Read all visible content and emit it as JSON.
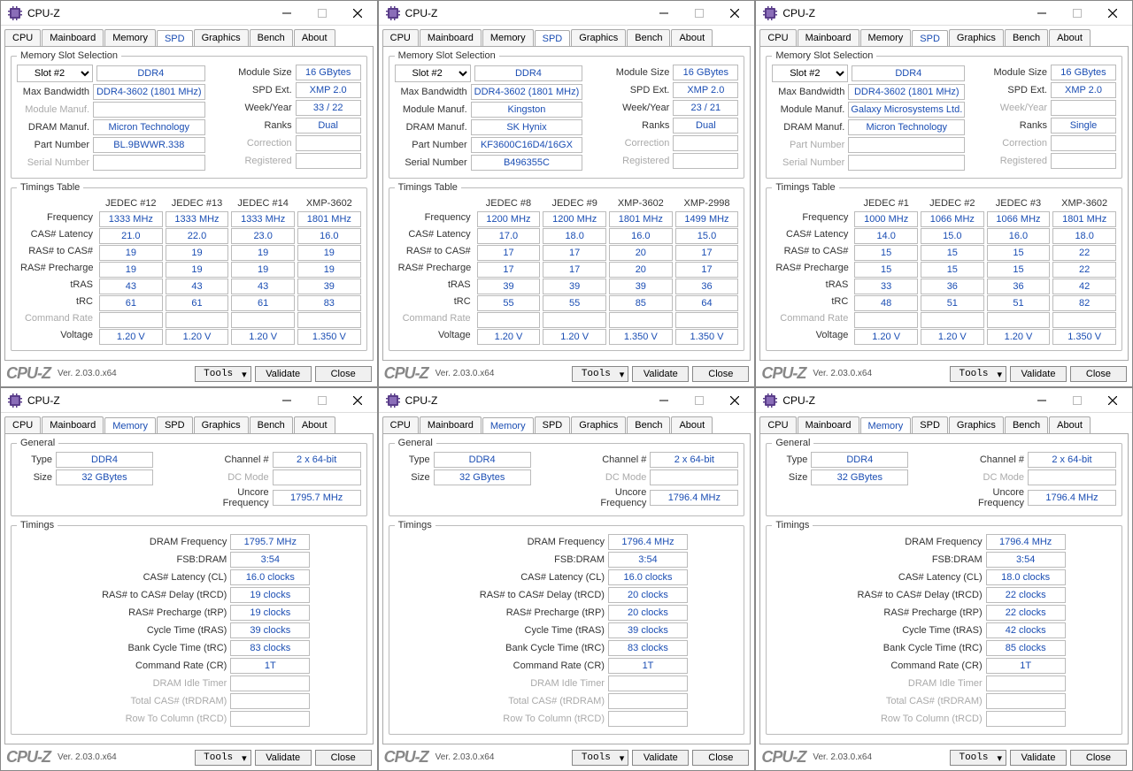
{
  "app": {
    "title": "CPU-Z",
    "logo": "CPU-Z",
    "version": "Ver. 2.03.0.x64"
  },
  "buttons": {
    "tools": "Tools",
    "validate": "Validate",
    "close": "Close"
  },
  "tabs": [
    "CPU",
    "Mainboard",
    "Memory",
    "SPD",
    "Graphics",
    "Bench",
    "About"
  ],
  "labels": {
    "memslot": "Memory Slot Selection",
    "maxbw": "Max Bandwidth",
    "modman": "Module Manuf.",
    "dramman": "DRAM Manuf.",
    "partnum": "Part Number",
    "serial": "Serial Number",
    "modsize": "Module Size",
    "spdext": "SPD Ext.",
    "weekyear": "Week/Year",
    "ranks": "Ranks",
    "correction": "Correction",
    "registered": "Registered",
    "timetbl": "Timings Table",
    "general": "General",
    "type": "Type",
    "size": "Size",
    "channel": "Channel #",
    "dcmode": "DC Mode",
    "uncore": "Uncore Frequency",
    "timings": "Timings"
  },
  "spdRows": [
    "Frequency",
    "CAS# Latency",
    "RAS# to CAS#",
    "RAS# Precharge",
    "tRAS",
    "tRC",
    "Command Rate",
    "Voltage"
  ],
  "memRows": [
    "DRAM Frequency",
    "FSB:DRAM",
    "CAS# Latency (CL)",
    "RAS# to CAS# Delay (tRCD)",
    "RAS# Precharge (tRP)",
    "Cycle Time (tRAS)",
    "Bank Cycle Time (tRC)",
    "Command Rate (CR)",
    "DRAM Idle Timer",
    "Total CAS# (tRDRAM)",
    "Row To Column (tRCD)"
  ],
  "colors": {
    "link": "#1a4db3",
    "disabled": "#aaa"
  },
  "spdWindows": [
    {
      "slot": "Slot #2",
      "ddr": "DDR4",
      "maxbw": "DDR4-3602 (1801 MHz)",
      "modman": "",
      "dramman": "Micron Technology",
      "partnum": "BL.9BWWR.338",
      "serial": "",
      "modmanDis": true,
      "serialDis": true,
      "partnumDis": false,
      "drammanDis": false,
      "modsize": "16 GBytes",
      "spdext": "XMP 2.0",
      "weekyear": "33 / 22",
      "ranks": "Dual",
      "correction": "",
      "registered": "",
      "weekyearDis": false,
      "cols": [
        "JEDEC #12",
        "JEDEC #13",
        "JEDEC #14",
        "XMP-3602"
      ],
      "data": [
        [
          "1333 MHz",
          "1333 MHz",
          "1333 MHz",
          "1801 MHz"
        ],
        [
          "21.0",
          "22.0",
          "23.0",
          "16.0"
        ],
        [
          "19",
          "19",
          "19",
          "19"
        ],
        [
          "19",
          "19",
          "19",
          "19"
        ],
        [
          "43",
          "43",
          "43",
          "39"
        ],
        [
          "61",
          "61",
          "61",
          "83"
        ],
        [
          "",
          "",
          "",
          ""
        ],
        [
          "1.20 V",
          "1.20 V",
          "1.20 V",
          "1.350 V"
        ]
      ]
    },
    {
      "slot": "Slot #2",
      "ddr": "DDR4",
      "maxbw": "DDR4-3602 (1801 MHz)",
      "modman": "Kingston",
      "dramman": "SK Hynix",
      "partnum": "KF3600C16D4/16GX",
      "serial": "B496355C",
      "modmanDis": false,
      "serialDis": false,
      "partnumDis": false,
      "drammanDis": false,
      "modsize": "16 GBytes",
      "spdext": "XMP 2.0",
      "weekyear": "23 / 21",
      "ranks": "Dual",
      "correction": "",
      "registered": "",
      "weekyearDis": false,
      "cols": [
        "JEDEC #8",
        "JEDEC #9",
        "XMP-3602",
        "XMP-2998"
      ],
      "data": [
        [
          "1200 MHz",
          "1200 MHz",
          "1801 MHz",
          "1499 MHz"
        ],
        [
          "17.0",
          "18.0",
          "16.0",
          "15.0"
        ],
        [
          "17",
          "17",
          "20",
          "17"
        ],
        [
          "17",
          "17",
          "20",
          "17"
        ],
        [
          "39",
          "39",
          "39",
          "36"
        ],
        [
          "55",
          "55",
          "85",
          "64"
        ],
        [
          "",
          "",
          "",
          ""
        ],
        [
          "1.20 V",
          "1.20 V",
          "1.350 V",
          "1.350 V"
        ]
      ]
    },
    {
      "slot": "Slot #2",
      "ddr": "DDR4",
      "maxbw": "DDR4-3602 (1801 MHz)",
      "modman": "Galaxy Microsystems Ltd.",
      "dramman": "Micron Technology",
      "partnum": "",
      "serial": "",
      "modmanDis": false,
      "serialDis": true,
      "partnumDis": true,
      "drammanDis": false,
      "modsize": "16 GBytes",
      "spdext": "XMP 2.0",
      "weekyear": "",
      "ranks": "Single",
      "correction": "",
      "registered": "",
      "weekyearDis": true,
      "cols": [
        "JEDEC #1",
        "JEDEC #2",
        "JEDEC #3",
        "XMP-3602"
      ],
      "data": [
        [
          "1000 MHz",
          "1066 MHz",
          "1066 MHz",
          "1801 MHz"
        ],
        [
          "14.0",
          "15.0",
          "16.0",
          "18.0"
        ],
        [
          "15",
          "15",
          "15",
          "22"
        ],
        [
          "15",
          "15",
          "15",
          "22"
        ],
        [
          "33",
          "36",
          "36",
          "42"
        ],
        [
          "48",
          "51",
          "51",
          "82"
        ],
        [
          "",
          "",
          "",
          ""
        ],
        [
          "1.20 V",
          "1.20 V",
          "1.20 V",
          "1.350 V"
        ]
      ]
    }
  ],
  "memWindows": [
    {
      "type": "DDR4",
      "size": "32 GBytes",
      "channel": "2 x 64-bit",
      "dcmode": "",
      "uncore": "1795.7 MHz",
      "vals": [
        "1795.7 MHz",
        "3:54",
        "16.0 clocks",
        "19 clocks",
        "19 clocks",
        "39 clocks",
        "83 clocks",
        "1T",
        "",
        "",
        ""
      ]
    },
    {
      "type": "DDR4",
      "size": "32 GBytes",
      "channel": "2 x 64-bit",
      "dcmode": "",
      "uncore": "1796.4 MHz",
      "vals": [
        "1796.4 MHz",
        "3:54",
        "16.0 clocks",
        "20 clocks",
        "20 clocks",
        "39 clocks",
        "83 clocks",
        "1T",
        "",
        "",
        ""
      ]
    },
    {
      "type": "DDR4",
      "size": "32 GBytes",
      "channel": "2 x 64-bit",
      "dcmode": "",
      "uncore": "1796.4 MHz",
      "vals": [
        "1796.4 MHz",
        "3:54",
        "18.0 clocks",
        "22 clocks",
        "22 clocks",
        "42 clocks",
        "85 clocks",
        "1T",
        "",
        "",
        ""
      ]
    }
  ]
}
